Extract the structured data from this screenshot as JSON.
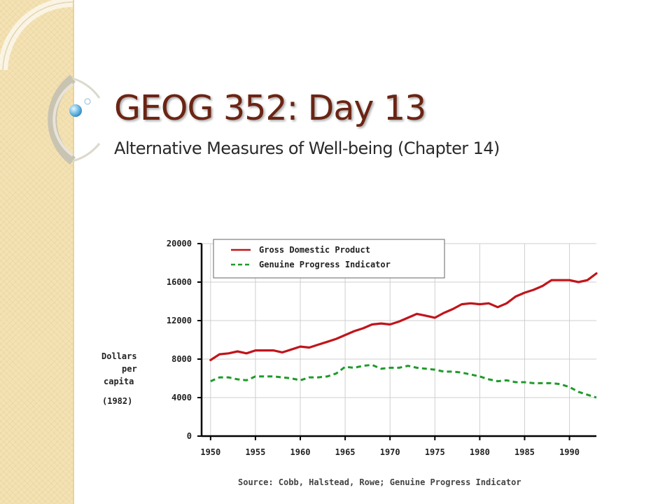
{
  "slide": {
    "title": "GEOG 352: Day 13",
    "subtitle": "Alternative Measures of Well-being (Chapter 14)"
  },
  "chart_data": {
    "type": "line",
    "xlabel": "",
    "ylabel_lines": [
      "Dollars",
      "per",
      "capita",
      "(1982)"
    ],
    "x_ticks": [
      "1950",
      "1955",
      "1960",
      "1965",
      "1970",
      "1975",
      "1980",
      "1985",
      "1990"
    ],
    "y_ticks": [
      "0",
      "4000",
      "8000",
      "12000",
      "16000",
      "20000"
    ],
    "xlim": [
      1949,
      1993
    ],
    "ylim": [
      0,
      20000
    ],
    "grid": true,
    "legend_position": "top-left",
    "source": "Source: Cobb, Halstead, Rowe; Genuine Progress Indicator",
    "series": [
      {
        "name": "Gross Domestic Product",
        "color": "#c0151b",
        "style": "solid",
        "x": [
          1950,
          1951,
          1952,
          1953,
          1954,
          1955,
          1956,
          1957,
          1958,
          1959,
          1960,
          1961,
          1962,
          1963,
          1964,
          1965,
          1966,
          1967,
          1968,
          1969,
          1970,
          1971,
          1972,
          1973,
          1974,
          1975,
          1976,
          1977,
          1978,
          1979,
          1980,
          1981,
          1982,
          1983,
          1984,
          1985,
          1986,
          1987,
          1988,
          1989,
          1990,
          1991,
          1992,
          1993
        ],
        "values": [
          7900,
          8500,
          8600,
          8800,
          8600,
          8900,
          8900,
          8900,
          8700,
          9000,
          9300,
          9200,
          9500,
          9800,
          10100,
          10500,
          10900,
          11200,
          11600,
          11700,
          11600,
          11900,
          12300,
          12700,
          12500,
          12300,
          12800,
          13200,
          13700,
          13800,
          13700,
          13800,
          13400,
          13800,
          14500,
          14900,
          15200,
          15600,
          16200,
          16200,
          16200,
          16000,
          16200,
          16900
        ]
      },
      {
        "name": "Genuine Progress Indicator",
        "color": "#1f9b2a",
        "style": "dashed",
        "x": [
          1950,
          1951,
          1952,
          1953,
          1954,
          1955,
          1956,
          1957,
          1958,
          1959,
          1960,
          1961,
          1962,
          1963,
          1964,
          1965,
          1966,
          1967,
          1968,
          1969,
          1970,
          1971,
          1972,
          1973,
          1974,
          1975,
          1976,
          1977,
          1978,
          1979,
          1980,
          1981,
          1982,
          1983,
          1984,
          1985,
          1986,
          1987,
          1988,
          1989,
          1990,
          1991,
          1992,
          1993
        ],
        "values": [
          5700,
          6100,
          6100,
          5900,
          5800,
          6200,
          6200,
          6200,
          6100,
          6000,
          5800,
          6100,
          6100,
          6200,
          6500,
          7200,
          7100,
          7300,
          7400,
          7000,
          7100,
          7100,
          7300,
          7100,
          7000,
          6900,
          6700,
          6700,
          6600,
          6400,
          6200,
          5900,
          5700,
          5800,
          5600,
          5600,
          5500,
          5500,
          5500,
          5400,
          5100,
          4600,
          4300,
          4000
        ]
      }
    ]
  }
}
